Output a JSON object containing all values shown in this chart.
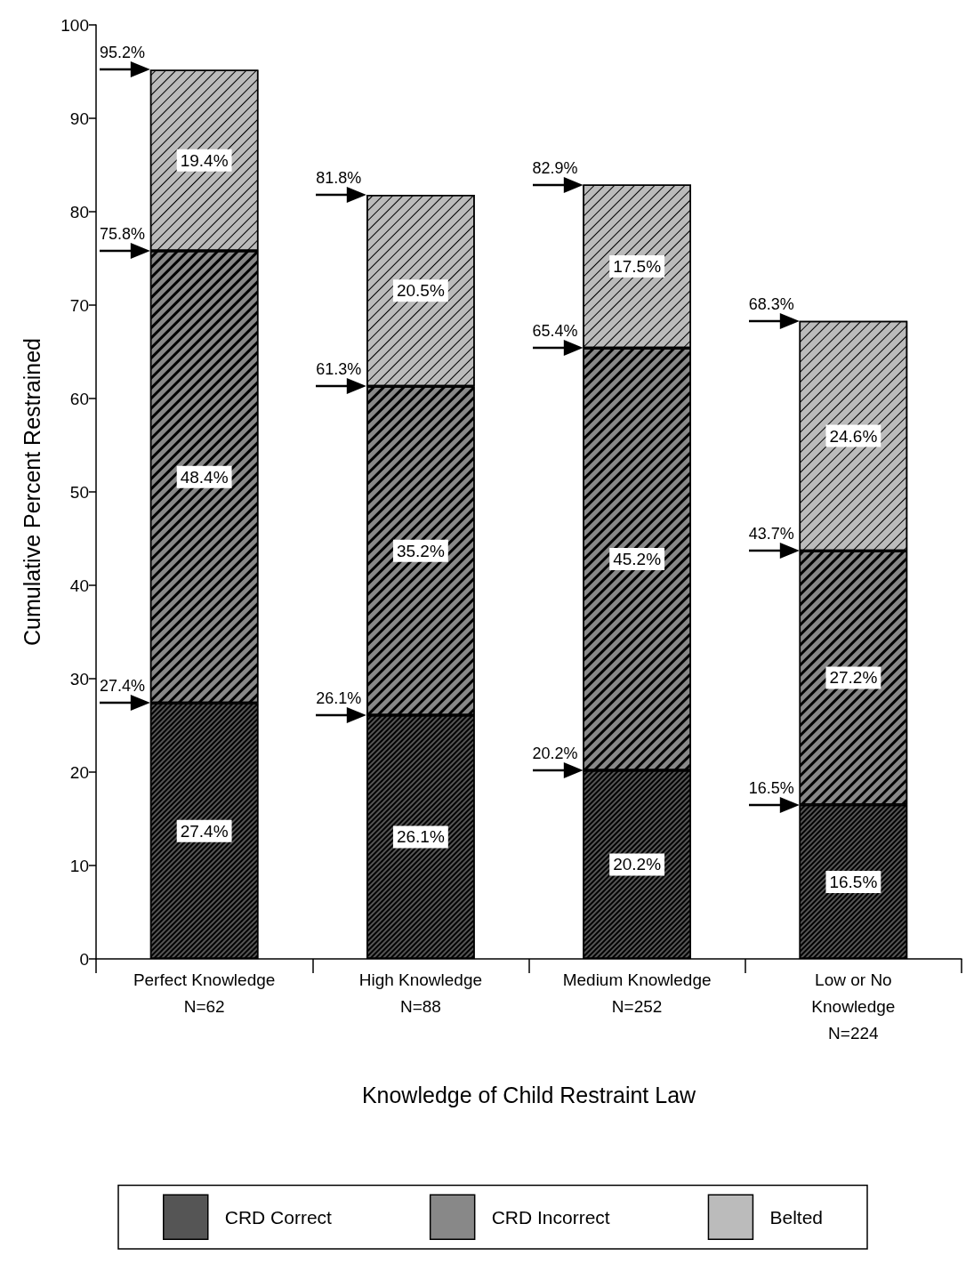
{
  "chart_data": {
    "type": "bar",
    "stacked": true,
    "ylabel": "Cumulative Percent Restrained",
    "xlabel": "Knowledge of Child Restraint Law",
    "categories": [
      "Perfect Knowledge\nN=62",
      "High Knowledge\nN=88",
      "Medium Knowledge\nN=252",
      "Low or No\nKnowledge\nN=224"
    ],
    "ylim": [
      0,
      100
    ],
    "yticks": [
      0,
      10,
      20,
      30,
      40,
      50,
      60,
      70,
      80,
      90,
      100
    ],
    "grid": false,
    "legend": "bottom",
    "series": [
      {
        "name": "CRD Correct",
        "color": "#555555",
        "values": [
          27.4,
          26.1,
          20.2,
          16.5
        ],
        "value_labels": [
          "27.4%",
          "26.1%",
          "20.2%",
          "16.5%"
        ]
      },
      {
        "name": "CRD Incorrect",
        "color": "#888888",
        "values": [
          48.4,
          35.2,
          45.2,
          27.2
        ],
        "value_labels": [
          "48.4%",
          "35.2%",
          "45.2%",
          "27.2%"
        ]
      },
      {
        "name": "Belted",
        "color": "#bbbbbb",
        "values": [
          19.4,
          20.5,
          17.5,
          24.6
        ],
        "value_labels": [
          "19.4%",
          "20.5%",
          "17.5%",
          "24.6%"
        ]
      }
    ],
    "annotations": [
      "27.4%",
      "75.8%",
      "95.2%",
      "26.1%",
      "61.3%",
      "81.8%",
      "20.2%",
      "65.4%",
      "82.9%",
      "16.5%",
      "43.7%",
      "68.3%"
    ]
  }
}
